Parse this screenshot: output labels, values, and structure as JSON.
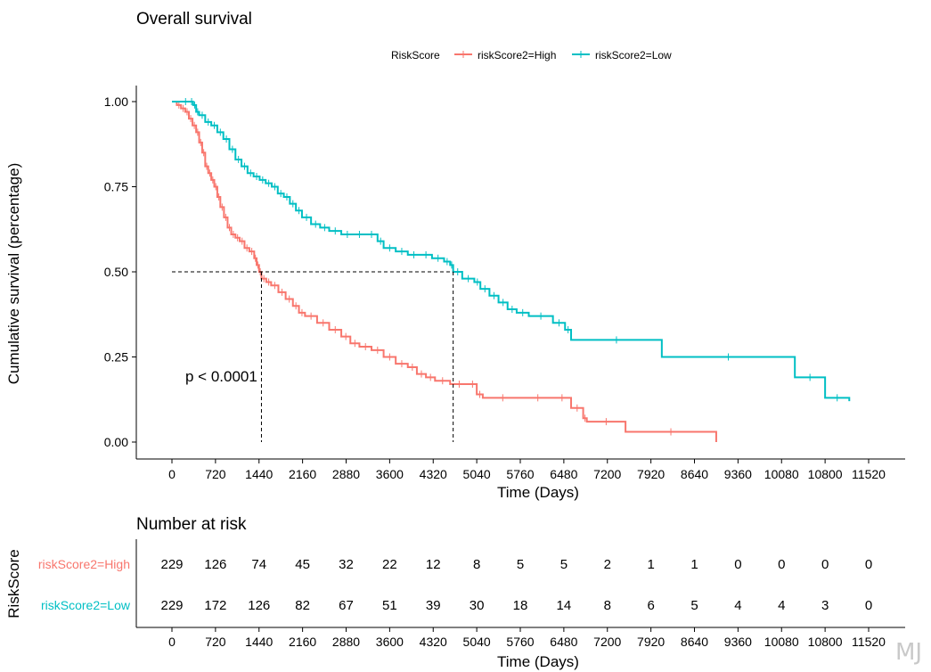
{
  "chart_data": {
    "type": "line",
    "subtype": "kaplan-meier",
    "title": "Overall survival",
    "xlabel": "Time (Days)",
    "ylabel": "Cumulative survival (percentage)",
    "xlim": [
      0,
      11880
    ],
    "ylim": [
      0,
      1
    ],
    "xticks": [
      0,
      720,
      1440,
      2160,
      2880,
      3600,
      4320,
      5040,
      5760,
      6480,
      7200,
      7920,
      8640,
      9360,
      10080,
      10800,
      11520
    ],
    "yticks": [
      "0.00",
      "0.25",
      "0.50",
      "0.75",
      "1.00"
    ],
    "yticks_values": [
      0,
      0.25,
      0.5,
      0.75,
      1
    ],
    "legend_title": "RiskScore",
    "legend_position": "top",
    "pvalue_text": "p < 0.0001",
    "median_line": 0.5,
    "medians": [
      1480,
      4650
    ],
    "series": [
      {
        "name": "riskScore2=High",
        "color": "#F8766D",
        "x": [
          0,
          80,
          150,
          220,
          280,
          340,
          400,
          450,
          500,
          550,
          600,
          650,
          700,
          750,
          800,
          860,
          920,
          980,
          1050,
          1120,
          1200,
          1280,
          1360,
          1400,
          1440,
          1480,
          1560,
          1640,
          1760,
          1880,
          2000,
          2100,
          2200,
          2400,
          2600,
          2800,
          2950,
          3100,
          3300,
          3500,
          3700,
          3900,
          4050,
          4200,
          4350,
          4600,
          4900,
          5040,
          5140,
          5800,
          6300,
          6600,
          6800,
          6860,
          7500,
          9000
        ],
        "y": [
          1.0,
          0.99,
          0.98,
          0.97,
          0.95,
          0.93,
          0.91,
          0.88,
          0.85,
          0.81,
          0.79,
          0.77,
          0.75,
          0.72,
          0.69,
          0.66,
          0.63,
          0.61,
          0.6,
          0.59,
          0.57,
          0.56,
          0.54,
          0.52,
          0.5,
          0.48,
          0.47,
          0.46,
          0.44,
          0.42,
          0.4,
          0.38,
          0.37,
          0.35,
          0.33,
          0.31,
          0.29,
          0.28,
          0.27,
          0.25,
          0.23,
          0.22,
          0.2,
          0.19,
          0.18,
          0.17,
          0.17,
          0.14,
          0.13,
          0.13,
          0.13,
          0.1,
          0.07,
          0.06,
          0.03,
          0.0
        ],
        "end_x": 9000
      },
      {
        "name": "riskScore2=Low",
        "color": "#00BFC4",
        "x": [
          0,
          150,
          300,
          350,
          400,
          450,
          550,
          650,
          750,
          850,
          950,
          1050,
          1150,
          1250,
          1350,
          1450,
          1550,
          1650,
          1750,
          1850,
          1950,
          2050,
          2150,
          2300,
          2450,
          2600,
          2800,
          3000,
          3200,
          3400,
          3500,
          3700,
          3900,
          4100,
          4300,
          4500,
          4600,
          4650,
          4800,
          5000,
          5100,
          5250,
          5400,
          5550,
          5700,
          5900,
          6300,
          6500,
          6600,
          8100,
          10300,
          10800,
          11200
        ],
        "y": [
          1.0,
          1.0,
          1.0,
          0.99,
          0.97,
          0.96,
          0.94,
          0.93,
          0.91,
          0.89,
          0.86,
          0.83,
          0.81,
          0.79,
          0.78,
          0.77,
          0.76,
          0.75,
          0.73,
          0.72,
          0.7,
          0.68,
          0.66,
          0.64,
          0.63,
          0.62,
          0.61,
          0.61,
          0.61,
          0.59,
          0.57,
          0.56,
          0.55,
          0.55,
          0.54,
          0.53,
          0.52,
          0.5,
          0.48,
          0.47,
          0.45,
          0.43,
          0.41,
          0.39,
          0.38,
          0.37,
          0.35,
          0.33,
          0.3,
          0.25,
          0.19,
          0.13,
          0.12
        ],
        "end_x": 11200
      }
    ],
    "risk_table": {
      "title": "Number at risk",
      "ylabel": "RiskScore",
      "xlabel": "Time (Days)",
      "rows": [
        {
          "label": "riskScore2=High",
          "color": "#F8766D",
          "values": [
            229,
            126,
            74,
            45,
            32,
            22,
            12,
            8,
            5,
            5,
            2,
            1,
            1,
            0,
            0,
            0,
            0
          ]
        },
        {
          "label": "riskScore2=Low",
          "color": "#00BFC4",
          "values": [
            229,
            172,
            126,
            82,
            67,
            51,
            39,
            30,
            18,
            14,
            8,
            6,
            5,
            4,
            4,
            3,
            0
          ]
        }
      ]
    }
  },
  "watermark": "MJ"
}
